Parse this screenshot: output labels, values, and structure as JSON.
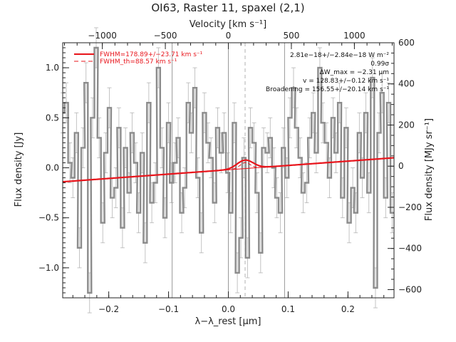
{
  "chart_data": {
    "type": "line",
    "title": "OI63, Raster 11, spaxel (2,1)",
    "xlabel": "λ−λ_rest [μm]",
    "ylabel_left": "Flux density [Jy]",
    "ylabel_right": "Flux density [MJy sr⁻¹]",
    "xlabel_top": "Velocity [km s⁻¹]",
    "xlim": [
      -0.277,
      0.277
    ],
    "ylim": [
      -1.3,
      1.25
    ],
    "xticks": [
      -0.2,
      -0.1,
      0.0,
      0.1,
      0.2
    ],
    "xtick_labels": [
      "−0.2",
      "−0.1",
      "0.0",
      "0.1",
      "0.2"
    ],
    "yticks": [
      -1.0,
      -0.5,
      0.0,
      0.5,
      1.0
    ],
    "ytick_labels": [
      "−1.0",
      "−0.5",
      "0.0",
      "0.5",
      "1.0"
    ],
    "top_ticks_kms": [
      -1000,
      -500,
      0,
      500,
      1000
    ],
    "top_tick_labels": [
      "−1000",
      "−500",
      "0",
      "500",
      "1000"
    ],
    "right_ylim": [
      -640,
      600
    ],
    "right_ticks": [
      -600,
      -400,
      -200,
      0,
      200,
      400,
      600
    ],
    "right_tick_labels": [
      "−600",
      "−400",
      "−200",
      "0",
      "200",
      "400",
      "600"
    ],
    "vertical_lines": [
      -0.094,
      0.0,
      0.094
    ],
    "line_center": 0.028,
    "series": [
      {
        "kind": "spectrum",
        "color": "#8c8c8c",
        "error_color": "#b5b5b5",
        "x": [
          -0.277,
          -0.271,
          -0.265,
          -0.26,
          -0.254,
          -0.249,
          -0.243,
          -0.238,
          -0.232,
          -0.227,
          -0.221,
          -0.216,
          -0.21,
          -0.205,
          -0.199,
          -0.194,
          -0.188,
          -0.183,
          -0.177,
          -0.172,
          -0.166,
          -0.161,
          -0.155,
          -0.15,
          -0.144,
          -0.139,
          -0.133,
          -0.128,
          -0.122,
          -0.117,
          -0.111,
          -0.106,
          -0.1,
          -0.095,
          -0.089,
          -0.084,
          -0.078,
          -0.073,
          -0.067,
          -0.062,
          -0.056,
          -0.051,
          -0.045,
          -0.04,
          -0.034,
          -0.029,
          -0.023,
          -0.018,
          -0.012,
          -0.007,
          -0.001,
          0.004,
          0.01,
          0.015,
          0.021,
          0.026,
          0.032,
          0.037,
          0.043,
          0.048,
          0.054,
          0.059,
          0.065,
          0.07,
          0.076,
          0.081,
          0.087,
          0.092,
          0.098,
          0.103,
          0.109,
          0.114,
          0.12,
          0.125,
          0.131,
          0.136,
          0.142,
          0.147,
          0.153,
          0.158,
          0.164,
          0.169,
          0.175,
          0.18,
          0.186,
          0.191,
          0.197,
          0.202,
          0.208,
          0.213,
          0.219,
          0.224,
          0.23,
          0.235,
          0.241,
          0.246,
          0.252,
          0.257,
          0.263,
          0.268,
          0.274
        ],
        "y": [
          0.55,
          0.65,
          0.05,
          -0.1,
          0.35,
          -0.8,
          0.2,
          0.85,
          -1.25,
          0.5,
          1.2,
          0.3,
          -0.55,
          0.15,
          0.6,
          -0.3,
          -0.2,
          0.4,
          -0.6,
          0.2,
          -0.25,
          0.35,
          0.05,
          -0.45,
          0.15,
          -0.75,
          0.65,
          -0.35,
          -0.15,
          1.0,
          0.2,
          -0.5,
          0.45,
          -0.15,
          0.05,
          0.3,
          -0.45,
          -0.2,
          0.65,
          0.35,
          0.8,
          -0.1,
          -0.65,
          0.55,
          0.25,
          0.1,
          -0.35,
          0.4,
          0.15,
          0.35,
          -0.05,
          -0.45,
          0.45,
          -1.05,
          -0.7,
          0.1,
          -0.9,
          0.4,
          0.25,
          -0.25,
          -0.85,
          0.2,
          0.15,
          0.3,
          0.0,
          -0.3,
          -0.45,
          0.2,
          -0.1,
          0.5,
          0.8,
          0.4,
          0.1,
          -0.25,
          -0.15,
          0.3,
          0.55,
          0.15,
          1.0,
          0.45,
          0.25,
          -0.1,
          0.5,
          0.15,
          0.65,
          -0.3,
          0.4,
          -0.55,
          -0.2,
          -0.45,
          0.35,
          -0.1,
          0.55,
          -0.25,
          0.9,
          -1.2,
          0.35,
          0.75,
          -0.3,
          0.65,
          -0.45
        ],
        "yerr": 0.2
      },
      {
        "kind": "fit",
        "name": "FWHM=178.89+/−23.71 km s⁻¹",
        "color": "#e8141b",
        "continuum_left": -0.14,
        "continuum_right": 0.1,
        "amplitude": 0.085,
        "sigma": 0.0135
      },
      {
        "kind": "fit-thermal",
        "name": "FWHM_th=88.57 km s⁻¹",
        "color": "#e8141b",
        "amplitude": 0.06,
        "sigma": 0.0085
      }
    ],
    "annotations": [
      "2.81e−18+/−2.84e−18 W m⁻²",
      "0.99σ",
      "ΔW_max = −2.31 μm",
      "v = 128.83+/−0.12 km s⁻¹",
      "Broadening = 156.55+/−20.14 km s⁻¹"
    ],
    "legend_placement": "top-left",
    "grid": false
  }
}
